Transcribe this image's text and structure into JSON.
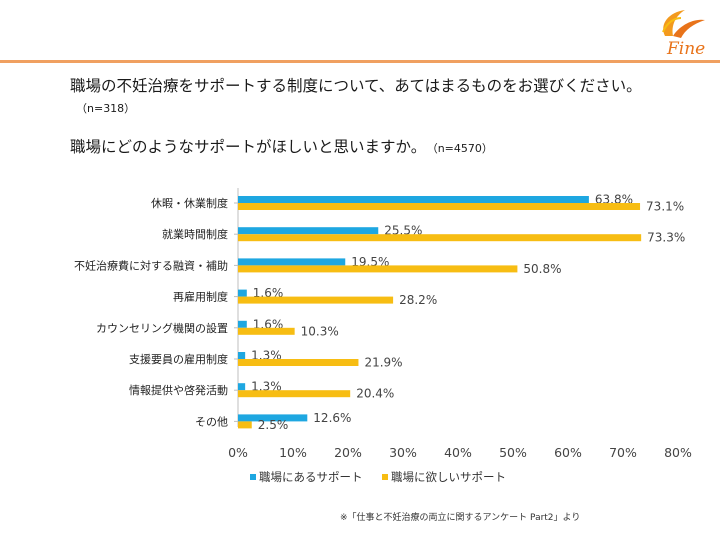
{
  "brand": {
    "logo_text": "Fine",
    "accent": "#e8731a"
  },
  "question1": {
    "text": "職場の不妊治療をサポートする制度について、あてはまるものをお選びください。",
    "n": "（n=318）"
  },
  "question2": {
    "text": "職場にどのようなサポートがほしいと思いますか。",
    "n": "（n=4570）"
  },
  "chart_data": {
    "type": "bar",
    "orientation": "horizontal",
    "categories": [
      "休暇・休業制度",
      "就業時間制度",
      "不妊治療費に対する融資・補助",
      "再雇用制度",
      "カウンセリング機関の設置",
      "支援要員の雇用制度",
      "情報提供や啓発活動",
      "その他"
    ],
    "series": [
      {
        "name": "職場にあるサポート",
        "color": "#1ea7e1",
        "values": [
          63.8,
          25.5,
          19.5,
          1.6,
          1.6,
          1.3,
          1.3,
          12.6
        ],
        "labels": [
          "63.8%",
          "25.5%",
          "19.5%",
          "1.6%",
          "1.6%",
          "1.3%",
          "1.3%",
          "12.6%"
        ]
      },
      {
        "name": "職場に欲しいサポート",
        "color": "#f7bd13",
        "values": [
          73.1,
          73.3,
          50.8,
          28.2,
          10.3,
          21.9,
          20.4,
          2.5
        ],
        "labels": [
          "73.1%",
          "73.3%",
          "50.8%",
          "28.2%",
          "10.3%",
          "21.9%",
          "20.4%",
          "2.5%"
        ]
      }
    ],
    "xlim": [
      0,
      80
    ],
    "xticks": [
      0,
      10,
      20,
      30,
      40,
      50,
      60,
      70,
      80
    ],
    "xtick_labels": [
      "0%",
      "10%",
      "20%",
      "30%",
      "40%",
      "50%",
      "60%",
      "70%",
      "80%"
    ],
    "grid": false,
    "legend": "bottom"
  },
  "source_note": "※「仕事と不妊治療の両立に関するアンケート Part2」より"
}
